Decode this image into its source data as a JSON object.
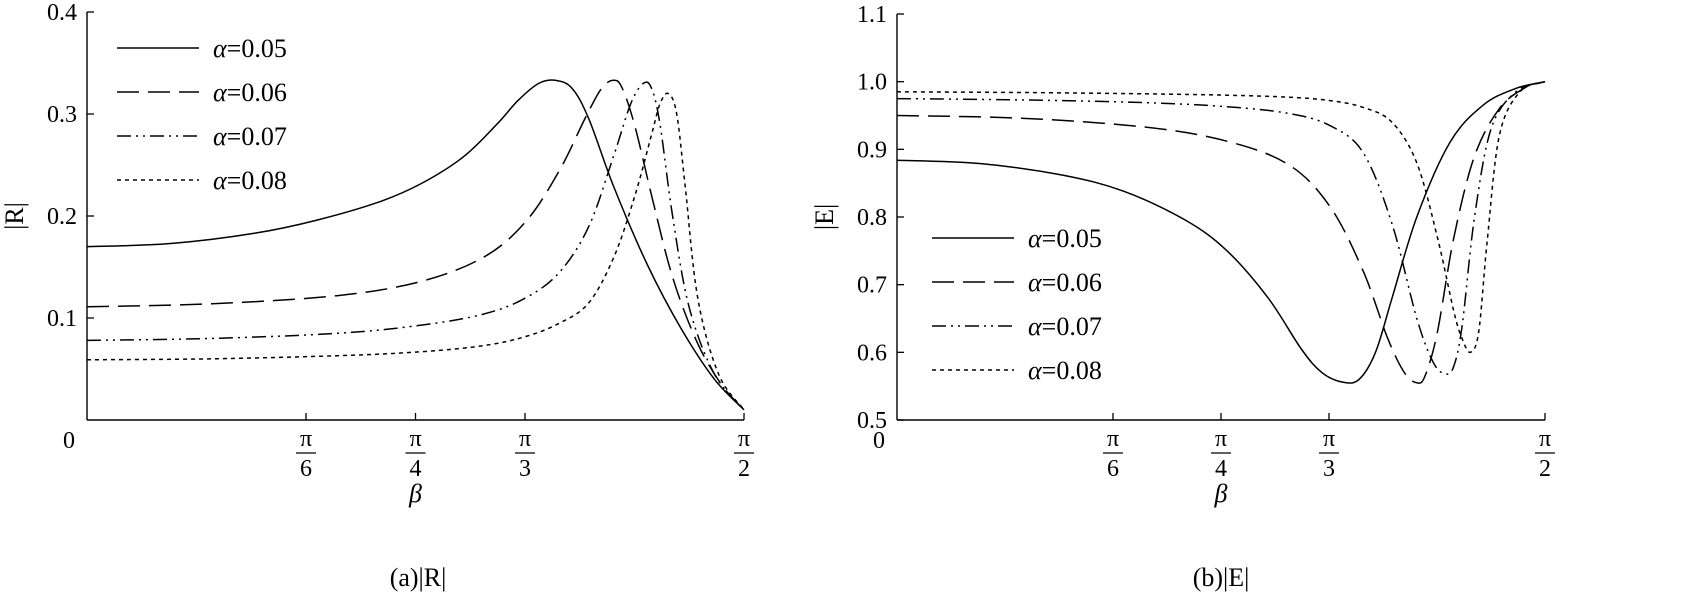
{
  "chart_data": [
    {
      "type": "line",
      "caption": "(a)|R|",
      "xlabel": "β",
      "ylabel": "|R|",
      "xlim": [
        0,
        1.5708
      ],
      "ylim": [
        0,
        0.4
      ],
      "x_ticks": [
        {
          "value": 0,
          "label": "0"
        },
        {
          "value": 0.5236,
          "num": "π",
          "den": "6"
        },
        {
          "value": 0.7854,
          "num": "π",
          "den": "4"
        },
        {
          "value": 1.0472,
          "num": "π",
          "den": "3"
        },
        {
          "value": 1.5708,
          "num": "π",
          "den": "2"
        }
      ],
      "y_ticks": [
        "0.1",
        "0.2",
        "0.3",
        "0.4"
      ],
      "y_tick_values": [
        0.1,
        0.2,
        0.3,
        0.4
      ],
      "legend_position": "top-left",
      "series": [
        {
          "name": "α=0.05",
          "legend_symbol": "α",
          "legend_value": "=0.05",
          "dash": "solid",
          "x": [
            0,
            0.2,
            0.4,
            0.55,
            0.7,
            0.8,
            0.9,
            0.98,
            1.03,
            1.08,
            1.12,
            1.16,
            1.2,
            1.26,
            1.34,
            1.42,
            1.5,
            1.5708
          ],
          "y": [
            0.17,
            0.173,
            0.183,
            0.196,
            0.214,
            0.232,
            0.258,
            0.29,
            0.313,
            0.33,
            0.333,
            0.325,
            0.295,
            0.228,
            0.152,
            0.09,
            0.04,
            0.01
          ]
        },
        {
          "name": "α=0.06",
          "legend_symbol": "α",
          "legend_value": "=0.06",
          "dash": "dashed",
          "x": [
            0,
            0.3,
            0.6,
            0.8,
            0.95,
            1.05,
            1.13,
            1.19,
            1.23,
            1.26,
            1.28,
            1.31,
            1.35,
            1.4,
            1.46,
            1.52,
            1.5708
          ],
          "y": [
            0.111,
            0.114,
            0.122,
            0.136,
            0.16,
            0.195,
            0.245,
            0.295,
            0.325,
            0.333,
            0.325,
            0.288,
            0.22,
            0.14,
            0.075,
            0.033,
            0.01
          ]
        },
        {
          "name": "α=0.07",
          "legend_symbol": "α",
          "legend_value": "=0.07",
          "dash": "dashdot",
          "x": [
            0,
            0.3,
            0.6,
            0.8,
            0.95,
            1.05,
            1.13,
            1.2,
            1.26,
            1.3,
            1.33,
            1.35,
            1.37,
            1.4,
            1.44,
            1.5,
            1.5708
          ],
          "y": [
            0.078,
            0.08,
            0.085,
            0.093,
            0.104,
            0.12,
            0.145,
            0.19,
            0.26,
            0.31,
            0.33,
            0.325,
            0.29,
            0.2,
            0.11,
            0.045,
            0.01
          ]
        },
        {
          "name": "α=0.08",
          "legend_symbol": "α",
          "legend_value": "=0.08",
          "dash": "dotted",
          "x": [
            0,
            0.3,
            0.6,
            0.8,
            0.95,
            1.05,
            1.13,
            1.2,
            1.26,
            1.31,
            1.35,
            1.37,
            1.39,
            1.41,
            1.43,
            1.46,
            1.51,
            1.5708
          ],
          "y": [
            0.059,
            0.06,
            0.063,
            0.067,
            0.073,
            0.082,
            0.095,
            0.115,
            0.16,
            0.22,
            0.28,
            0.31,
            0.32,
            0.3,
            0.23,
            0.12,
            0.045,
            0.01
          ]
        }
      ]
    },
    {
      "type": "line",
      "caption": "(b)|E|",
      "xlabel": "β",
      "ylabel": "|E|",
      "xlim": [
        0,
        1.5708
      ],
      "ylim": [
        0.5,
        1.1
      ],
      "x_ticks": [
        {
          "value": 0,
          "label": "0"
        },
        {
          "value": 0.5236,
          "num": "π",
          "den": "6"
        },
        {
          "value": 0.7854,
          "num": "π",
          "den": "4"
        },
        {
          "value": 1.0472,
          "num": "π",
          "den": "3"
        },
        {
          "value": 1.5708,
          "num": "π",
          "den": "2"
        }
      ],
      "y_ticks": [
        "0.5",
        "0.6",
        "0.7",
        "0.8",
        "0.9",
        "1.0",
        "1.1"
      ],
      "y_tick_values": [
        0.5,
        0.6,
        0.7,
        0.8,
        0.9,
        1.0,
        1.1
      ],
      "legend_position": "bottom-left",
      "series": [
        {
          "name": "α=0.05",
          "legend_symbol": "α",
          "legend_value": "=0.05",
          "dash": "solid",
          "x": [
            0,
            0.2,
            0.4,
            0.55,
            0.7,
            0.8,
            0.9,
            0.98,
            1.03,
            1.08,
            1.12,
            1.16,
            1.2,
            1.26,
            1.34,
            1.42,
            1.5,
            1.5708
          ],
          "y": [
            0.884,
            0.879,
            0.862,
            0.838,
            0.795,
            0.75,
            0.68,
            0.605,
            0.57,
            0.556,
            0.56,
            0.6,
            0.68,
            0.8,
            0.91,
            0.965,
            0.99,
            1.0
          ]
        },
        {
          "name": "α=0.06",
          "legend_symbol": "α",
          "legend_value": "=0.06",
          "dash": "dashed",
          "x": [
            0,
            0.3,
            0.6,
            0.8,
            0.95,
            1.05,
            1.13,
            1.19,
            1.23,
            1.26,
            1.28,
            1.31,
            1.35,
            1.4,
            1.46,
            1.52,
            1.5708
          ],
          "y": [
            0.95,
            0.946,
            0.933,
            0.912,
            0.877,
            0.815,
            0.72,
            0.62,
            0.57,
            0.555,
            0.565,
            0.63,
            0.77,
            0.89,
            0.96,
            0.99,
            1.0
          ]
        },
        {
          "name": "α=0.07",
          "legend_symbol": "α",
          "legend_value": "=0.07",
          "dash": "dashdot",
          "x": [
            0,
            0.3,
            0.6,
            0.8,
            0.95,
            1.05,
            1.13,
            1.2,
            1.26,
            1.3,
            1.33,
            1.35,
            1.37,
            1.4,
            1.44,
            1.5,
            1.5708
          ],
          "y": [
            0.975,
            0.973,
            0.969,
            0.963,
            0.953,
            0.935,
            0.895,
            0.79,
            0.65,
            0.585,
            0.568,
            0.58,
            0.64,
            0.8,
            0.93,
            0.985,
            1.0
          ]
        },
        {
          "name": "α=0.08",
          "legend_symbol": "α",
          "legend_value": "=0.08",
          "dash": "dotted",
          "x": [
            0,
            0.3,
            0.6,
            0.8,
            0.95,
            1.05,
            1.13,
            1.2,
            1.26,
            1.31,
            1.35,
            1.37,
            1.39,
            1.41,
            1.43,
            1.46,
            1.51,
            1.5708
          ],
          "y": [
            0.985,
            0.984,
            0.982,
            0.98,
            0.977,
            0.972,
            0.962,
            0.94,
            0.88,
            0.77,
            0.66,
            0.62,
            0.6,
            0.63,
            0.76,
            0.92,
            0.985,
            1.0
          ]
        }
      ]
    }
  ]
}
